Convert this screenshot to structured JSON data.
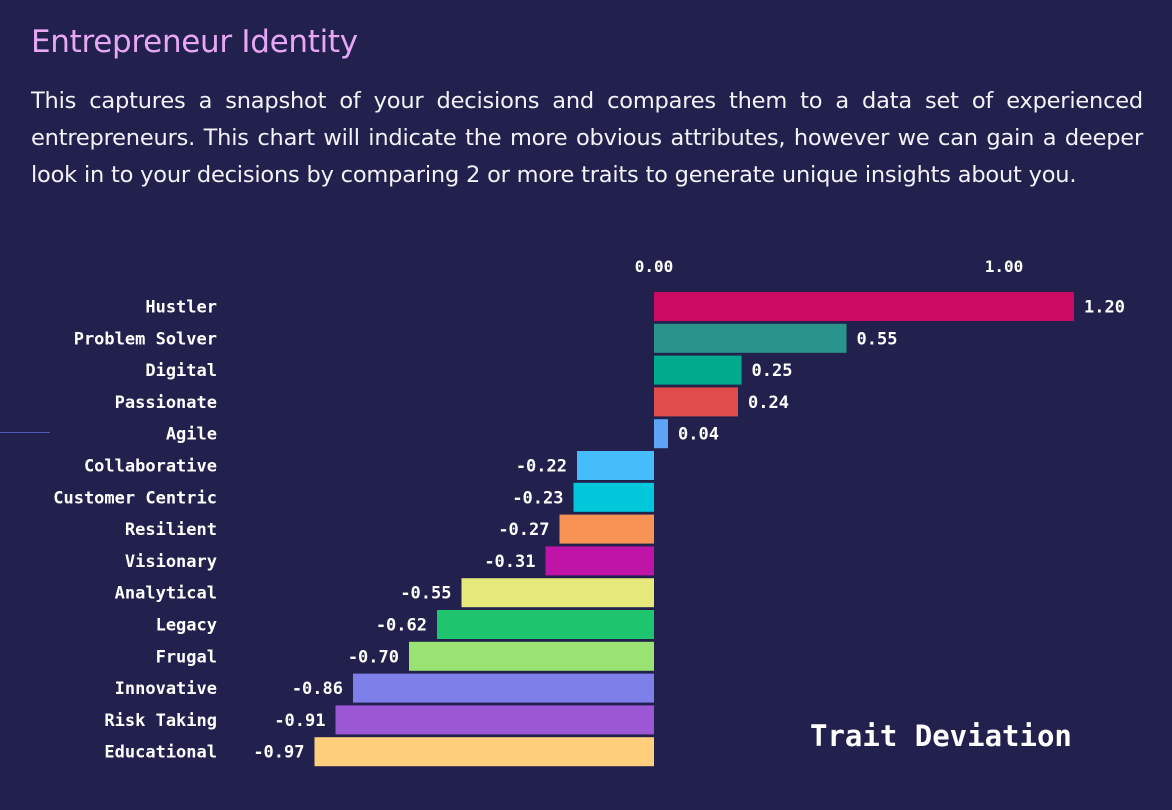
{
  "header": {
    "title": "Entrepreneur Identity",
    "description": "This captures a snapshot of your decisions and compares them to a data set of experienced entrepreneurs. This chart will indicate the more obvious attributes, however we can gain a deeper look in to your decisions by comparing 2 or more traits to generate unique insights about you."
  },
  "chart_data": {
    "type": "bar",
    "orientation": "horizontal",
    "xlabel": "Trait Deviation",
    "ylabel": "",
    "xlim": [
      -0.97,
      1.2
    ],
    "x_ticks": [
      "0.00",
      "1.00"
    ],
    "x_tick_values": [
      0,
      1
    ],
    "grid": false,
    "legend": "none",
    "categories": [
      "Hustler",
      "Problem Solver",
      "Digital",
      "Passionate",
      "Agile",
      "Collaborative",
      "Customer Centric",
      "Resilient",
      "Visionary",
      "Analytical",
      "Legacy",
      "Frugal",
      "Innovative",
      "Risk Taking",
      "Educational"
    ],
    "values": [
      1.2,
      0.55,
      0.25,
      0.24,
      0.04,
      -0.22,
      -0.23,
      -0.27,
      -0.31,
      -0.55,
      -0.62,
      -0.7,
      -0.86,
      -0.91,
      -0.97
    ],
    "value_labels": [
      "1.20",
      "0.55",
      "0.25",
      "0.24",
      "0.04",
      "-0.22",
      "-0.23",
      "-0.27",
      "-0.31",
      "-0.55",
      "-0.62",
      "-0.70",
      "-0.86",
      "-0.91",
      "-0.97"
    ],
    "colors": [
      "#cc0a63",
      "#2a948c",
      "#00aa8c",
      "#e04c4a",
      "#5fa3f5",
      "#46bdfa",
      "#00c8da",
      "#f79455",
      "#bf14a7",
      "#e6e87c",
      "#1ec46e",
      "#9ae271",
      "#7e7fe8",
      "#9b57d4",
      "#ffcf7e"
    ]
  },
  "chart_bottom_label": "Trait Deviation"
}
